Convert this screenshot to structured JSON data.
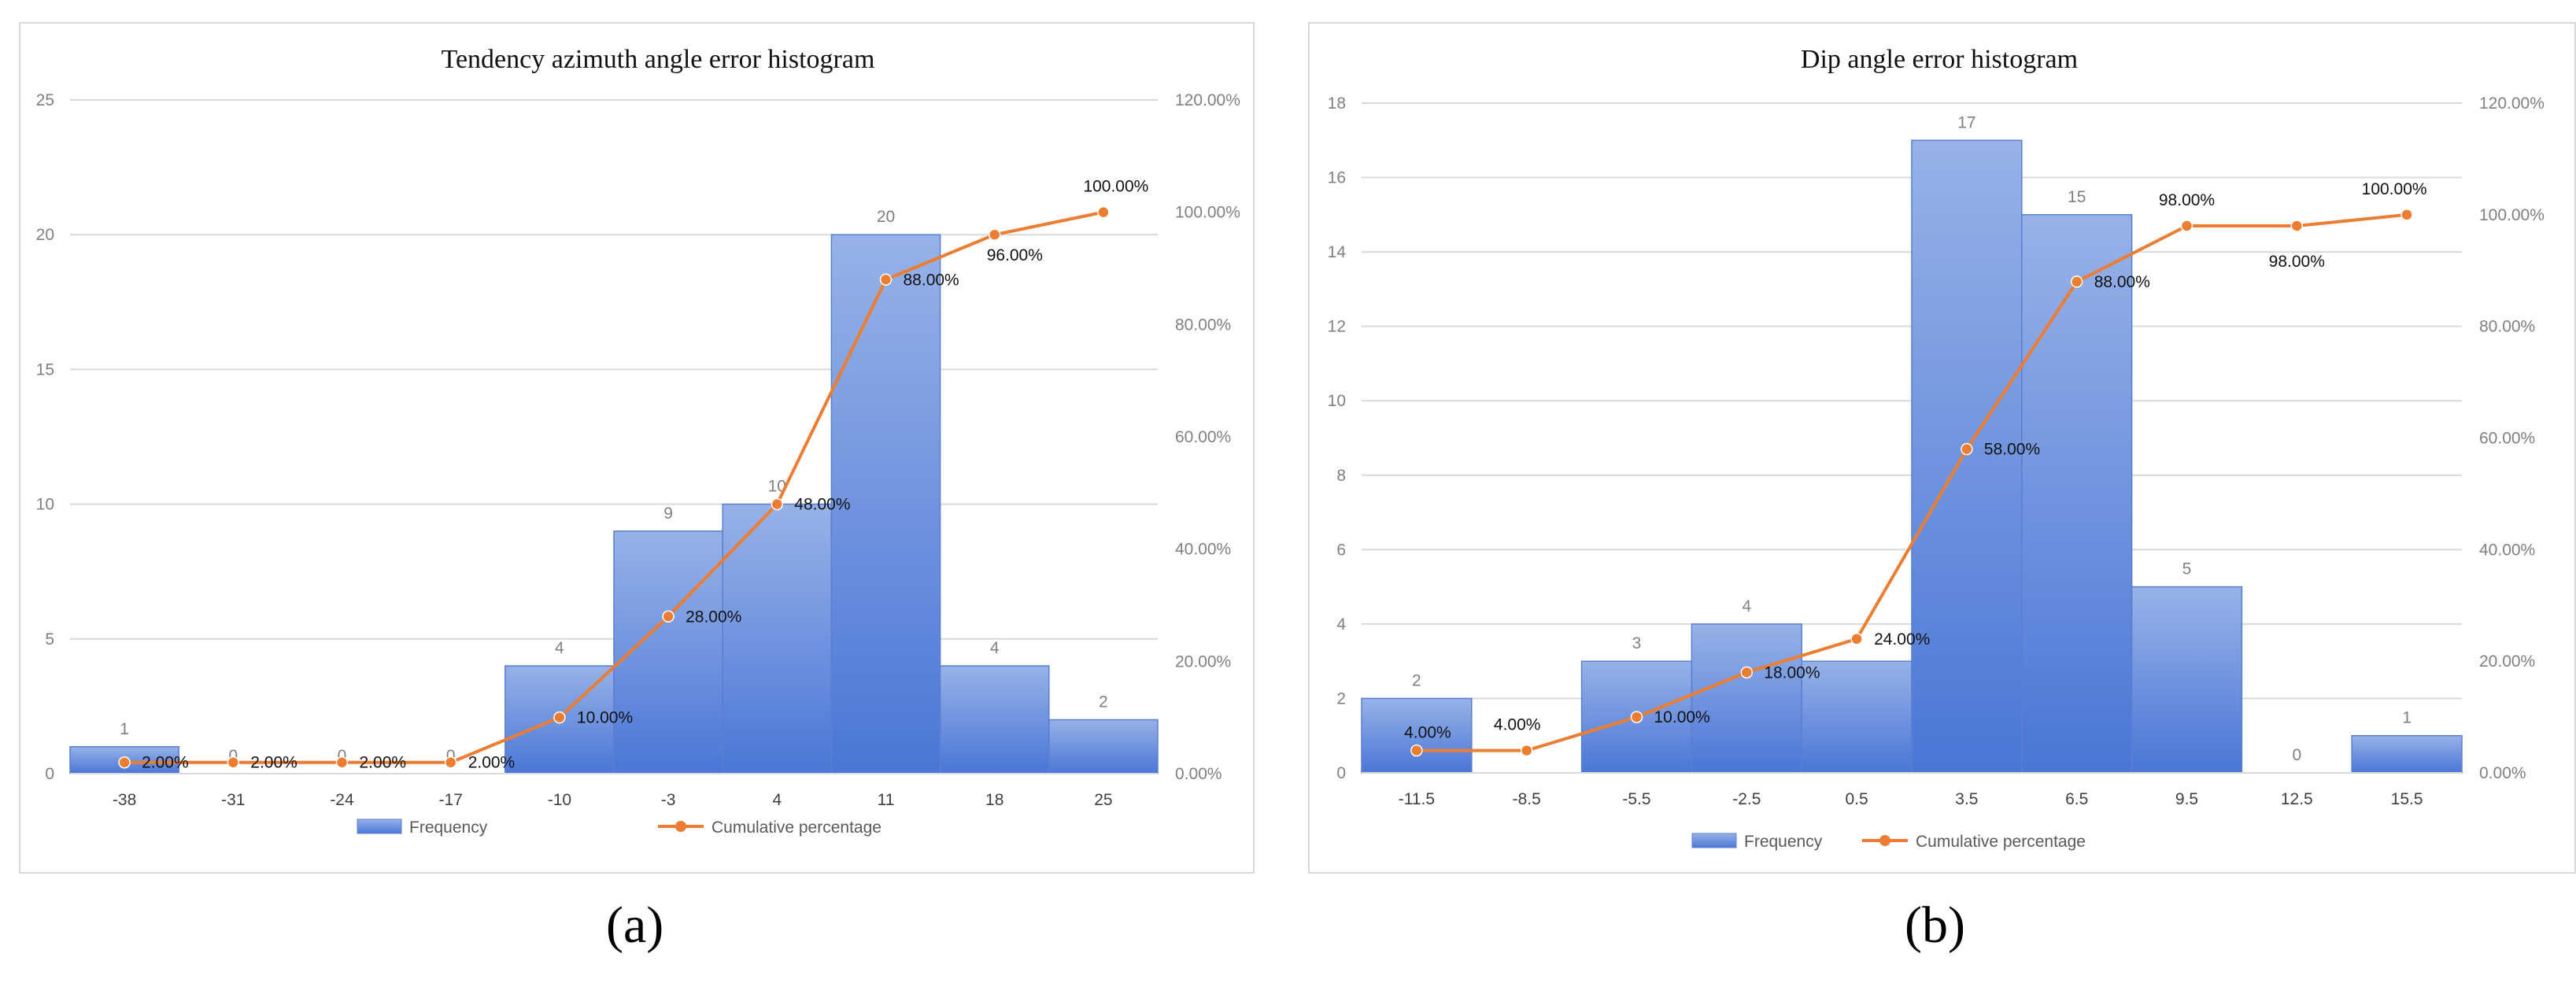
{
  "colors": {
    "bar_light": "#97b2e8",
    "bar_dark": "#4a76d6",
    "bar_stroke": "#5b7fd0",
    "line": "#ed7d31",
    "grid": "#d9d9d9"
  },
  "captions": [
    "(a)",
    "(b)"
  ],
  "chart_data": [
    {
      "type": "bar",
      "title": "Tendency azimuth angle error histogram",
      "categories": [
        "-38",
        "-31",
        "-24",
        "-17",
        "-10",
        "-3",
        "4",
        "11",
        "18",
        "25"
      ],
      "series": [
        {
          "name": "Frequency",
          "type": "bar",
          "axis": "left",
          "values": [
            1,
            0,
            0,
            0,
            4,
            9,
            10,
            20,
            4,
            2
          ]
        },
        {
          "name": "Cumulative percentage",
          "type": "line",
          "axis": "right",
          "values": [
            2,
            2,
            2,
            2,
            10,
            28,
            48,
            88,
            96,
            100
          ]
        }
      ],
      "bar_labels": [
        "1",
        "0",
        "0",
        "0",
        "4",
        "9",
        "10",
        "20",
        "4",
        "2"
      ],
      "line_labels": [
        "2.00%",
        "2.00%",
        "2.00%",
        "2.00%",
        "10.00%",
        "28.00%",
        "48.00%",
        "88.00%",
        "96.00%",
        "100.00%"
      ],
      "ylim": [
        0,
        25
      ],
      "yticks": [
        "0",
        "5",
        "10",
        "15",
        "20",
        "25"
      ],
      "y2lim": [
        0,
        120
      ],
      "y2ticks": [
        "0.00%",
        "20.00%",
        "40.00%",
        "60.00%",
        "80.00%",
        "100.00%",
        "120.00%"
      ],
      "xlabel": "",
      "ylabel": "",
      "legend": [
        "Frequency",
        "Cumulative percentage"
      ],
      "legend_position": "bottom",
      "grid": true
    },
    {
      "type": "bar",
      "title": "Dip angle error histogram",
      "categories": [
        "-11.5",
        "-8.5",
        "-5.5",
        "-2.5",
        "0.5",
        "3.5",
        "6.5",
        "9.5",
        "12.5",
        "15.5"
      ],
      "series": [
        {
          "name": "Frequency",
          "type": "bar",
          "axis": "left",
          "values": [
            2,
            0,
            3,
            4,
            3,
            17,
            15,
            5,
            0,
            1
          ]
        },
        {
          "name": "Cumulative percentage",
          "type": "line",
          "axis": "right",
          "values": [
            4,
            4,
            10,
            18,
            24,
            58,
            88,
            98,
            98,
            100
          ]
        }
      ],
      "bar_labels": [
        "2",
        "",
        "3",
        "4",
        "",
        "17",
        "15",
        "5",
        "0",
        "1"
      ],
      "line_labels": [
        "4.00%",
        "4.00%",
        "10.00%",
        "18.00%",
        "24.00%",
        "58.00%",
        "88.00%",
        "98.00%",
        "98.00%",
        "100.00%"
      ],
      "ylim": [
        0,
        18
      ],
      "yticks": [
        "0",
        "2",
        "4",
        "6",
        "8",
        "10",
        "12",
        "14",
        "16",
        "18"
      ],
      "y2lim": [
        0,
        120
      ],
      "y2ticks": [
        "0.00%",
        "20.00%",
        "40.00%",
        "60.00%",
        "80.00%",
        "100.00%",
        "120.00%"
      ],
      "xlabel": "",
      "ylabel": "",
      "legend": [
        "Frequency",
        "Cumulative percentage"
      ],
      "legend_position": "bottom",
      "grid": true
    }
  ]
}
